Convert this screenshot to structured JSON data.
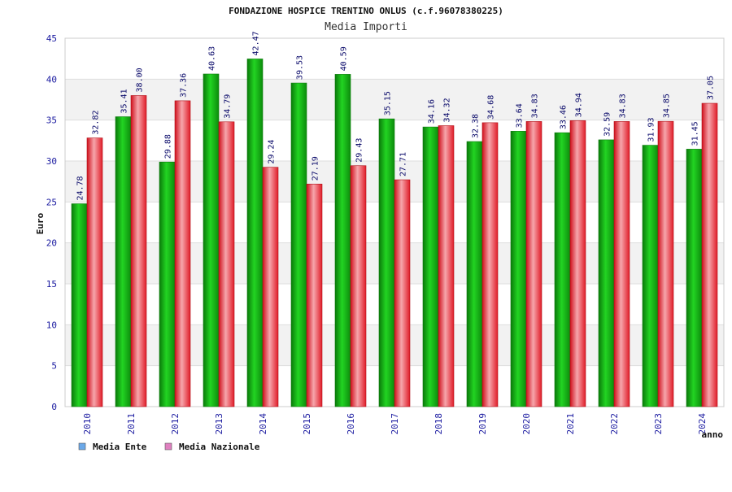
{
  "chart_data": {
    "type": "bar",
    "title": "FONDAZIONE HOSPICE TRENTINO ONLUS (c.f.96078380225)",
    "subtitle": "Media Importi",
    "xlabel": "anno",
    "ylabel": "Euro",
    "ylim": [
      0,
      45
    ],
    "yticks": [
      "0",
      "5",
      "10",
      "15",
      "20",
      "25",
      "30",
      "35",
      "40",
      "45"
    ],
    "grid": true,
    "legend_position": "bottom-left",
    "categories": [
      "2010",
      "2011",
      "2012",
      "2013",
      "2014",
      "2015",
      "2016",
      "2017",
      "2018",
      "2019",
      "2020",
      "2021",
      "2022",
      "2023",
      "2024"
    ],
    "series": [
      {
        "name": "Media Ente",
        "color": "#1fb21f",
        "legend_color": "#6ba8e8",
        "values": [
          24.78,
          35.41,
          29.88,
          40.63,
          42.47,
          39.53,
          40.59,
          35.15,
          34.16,
          32.38,
          33.64,
          33.46,
          32.59,
          31.93,
          31.45
        ],
        "labels": [
          "24.78",
          "35.41",
          "29.88",
          "40.63",
          "42.47",
          "39.53",
          "40.59",
          "35.15",
          "34.16",
          "32.38",
          "33.64",
          "33.46",
          "32.59",
          "31.93",
          "31.45"
        ]
      },
      {
        "name": "Media Nazionale",
        "color": "#e8323c",
        "legend_color": "#e080c0",
        "values": [
          32.82,
          38.0,
          37.36,
          34.79,
          29.24,
          27.19,
          29.43,
          27.71,
          34.32,
          34.68,
          34.83,
          34.94,
          34.83,
          34.85,
          37.05
        ],
        "labels": [
          "32.82",
          "38.00",
          "37.36",
          "34.79",
          "29.24",
          "27.19",
          "29.43",
          "27.71",
          "34.32",
          "34.68",
          "34.83",
          "34.94",
          "34.83",
          "34.85",
          "37.05"
        ]
      }
    ]
  }
}
